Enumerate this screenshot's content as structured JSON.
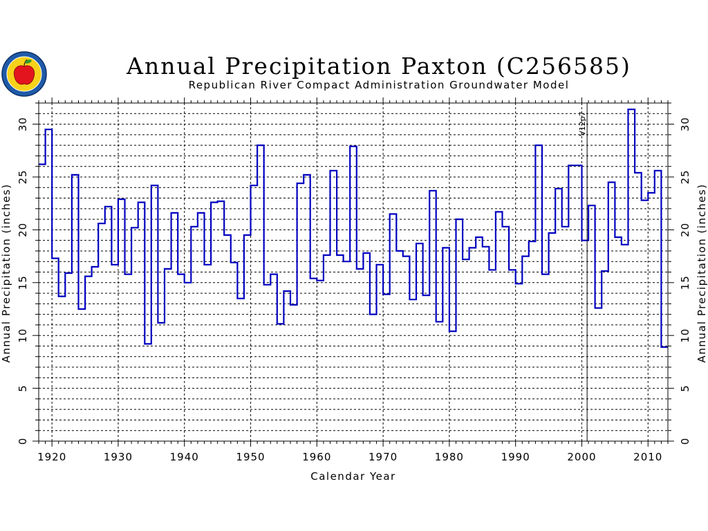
{
  "chart_data": {
    "type": "step",
    "title": "Annual Precipitation Paxton (C256585)",
    "subtitle": "Republican River Compact Administration Groundwater Model",
    "xlabel": "Calendar Year",
    "ylabel": "Annual Precipitation (inches)",
    "ylabel_right": "Annual Precipitation (inches)",
    "xlim": [
      1918,
      2013
    ],
    "ylim": [
      0,
      32
    ],
    "x_ticks": [
      1920,
      1930,
      1940,
      1950,
      1960,
      1970,
      1980,
      1990,
      2000,
      2010
    ],
    "y_ticks": [
      0,
      5,
      10,
      15,
      20,
      25,
      30
    ],
    "grid": true,
    "annotation": {
      "x": 2000.8,
      "text": "V12p7"
    },
    "series": [
      {
        "color": "#0000c0",
        "x": [
          1918,
          1919,
          1920,
          1921,
          1922,
          1923,
          1924,
          1925,
          1926,
          1927,
          1928,
          1929,
          1930,
          1931,
          1932,
          1933,
          1934,
          1935,
          1936,
          1937,
          1938,
          1939,
          1940,
          1941,
          1942,
          1943,
          1944,
          1945,
          1946,
          1947,
          1948,
          1949,
          1950,
          1951,
          1952,
          1953,
          1954,
          1955,
          1956,
          1957,
          1958,
          1959,
          1960,
          1961,
          1962,
          1963,
          1964,
          1965,
          1966,
          1967,
          1968,
          1969,
          1970,
          1971,
          1972,
          1973,
          1974,
          1975,
          1976,
          1977,
          1978,
          1979,
          1980,
          1981,
          1982,
          1983,
          1984,
          1985,
          1986,
          1987,
          1988,
          1989,
          1990,
          1991,
          1992,
          1993,
          1994,
          1995,
          1996,
          1997,
          1998,
          1999,
          2000,
          2001,
          2002,
          2003,
          2004,
          2005,
          2006,
          2007,
          2008,
          2009,
          2010,
          2011,
          2012
        ],
        "values": [
          26.2,
          29.5,
          17.3,
          13.7,
          15.9,
          25.2,
          12.5,
          15.6,
          16.5,
          20.6,
          22.2,
          16.7,
          22.9,
          15.8,
          20.2,
          22.6,
          9.2,
          24.2,
          11.2,
          16.3,
          21.6,
          15.8,
          15.0,
          20.3,
          21.6,
          16.7,
          22.6,
          22.7,
          19.5,
          16.9,
          13.5,
          19.5,
          24.2,
          28.0,
          14.8,
          15.8,
          11.1,
          14.2,
          12.9,
          24.4,
          25.2,
          15.4,
          15.2,
          17.6,
          25.6,
          17.6,
          17.0,
          27.9,
          16.3,
          17.8,
          12.0,
          16.7,
          13.9,
          21.5,
          18.0,
          17.5,
          13.4,
          18.7,
          13.8,
          23.7,
          11.3,
          18.3,
          10.4,
          21.0,
          17.2,
          18.3,
          19.3,
          18.4,
          16.2,
          21.7,
          20.3,
          16.2,
          14.9,
          17.5,
          18.9,
          28.0,
          15.8,
          19.7,
          23.9,
          20.3,
          26.1,
          26.1,
          19.0,
          22.3,
          12.6,
          16.1,
          24.5,
          19.3,
          18.6,
          31.4,
          25.4,
          22.8,
          23.5,
          25.6,
          8.9
        ]
      }
    ]
  }
}
